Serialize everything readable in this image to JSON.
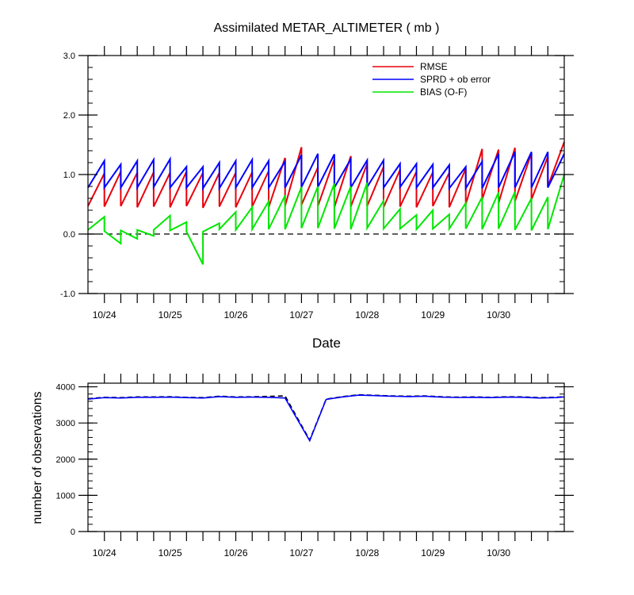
{
  "chart_data": [
    {
      "type": "line",
      "title": "Assimilated METAR_ALTIMETER ( mb )",
      "xlabel": "Date",
      "ylabel": "",
      "ylim": [
        -1.0,
        3.0
      ],
      "yticks": [
        "-1.0",
        "0.0",
        "1.0",
        "2.0",
        "3.0"
      ],
      "xlim": [
        0,
        29
      ],
      "xticks": [
        {
          "label": "10/24",
          "x": 1
        },
        {
          "label": "10/25",
          "x": 5
        },
        {
          "label": "10/26",
          "x": 9
        },
        {
          "label": "10/27",
          "x": 13
        },
        {
          "label": "10/28",
          "x": 17
        },
        {
          "label": "10/29",
          "x": 21
        },
        {
          "label": "10/30",
          "x": 25
        }
      ],
      "zero_line": true,
      "legend_position": "top-right",
      "series": [
        {
          "name": "RMSE",
          "color": "#e8000b",
          "cycles": [
            {
              "start": 0,
              "prior": 0.47,
              "post": 1.02
            },
            {
              "start": 1,
              "prior": 0.46,
              "post": 1.05
            },
            {
              "start": 2,
              "prior": 0.47,
              "post": 1.03
            },
            {
              "start": 3,
              "prior": 0.45,
              "post": 1.04
            },
            {
              "start": 4,
              "prior": 0.46,
              "post": 1.03
            },
            {
              "start": 5,
              "prior": 0.45,
              "post": 1.05
            },
            {
              "start": 6,
              "prior": 0.47,
              "post": 1.03
            },
            {
              "start": 7,
              "prior": 0.44,
              "post": 1.03
            },
            {
              "start": 8,
              "prior": 0.46,
              "post": 1.03
            },
            {
              "start": 9,
              "prior": 0.45,
              "post": 1.04
            },
            {
              "start": 10,
              "prior": 0.46,
              "post": 1.06
            },
            {
              "start": 11,
              "prior": 0.45,
              "post": 1.28
            },
            {
              "start": 12,
              "prior": 0.47,
              "post": 1.46
            },
            {
              "start": 13,
              "prior": 0.49,
              "post": 1.12
            },
            {
              "start": 14,
              "prior": 0.47,
              "post": 1.26
            },
            {
              "start": 15,
              "prior": 0.45,
              "post": 1.31
            },
            {
              "start": 16,
              "prior": 0.46,
              "post": 1.18
            },
            {
              "start": 17,
              "prior": 0.47,
              "post": 1.13
            },
            {
              "start": 18,
              "prior": 0.45,
              "post": 1.08
            },
            {
              "start": 19,
              "prior": 0.46,
              "post": 1.05
            },
            {
              "start": 20,
              "prior": 0.45,
              "post": 1.04
            },
            {
              "start": 21,
              "prior": 0.47,
              "post": 1.03
            },
            {
              "start": 22,
              "prior": 0.45,
              "post": 1.1
            },
            {
              "start": 23,
              "prior": 0.5,
              "post": 1.43
            },
            {
              "start": 24,
              "prior": 0.58,
              "post": 1.42
            },
            {
              "start": 25,
              "prior": 0.52,
              "post": 1.45
            },
            {
              "start": 26,
              "prior": 0.55,
              "post": 1.36
            },
            {
              "start": 27,
              "prior": 0.58,
              "post": 1.3
            },
            {
              "start": 28,
              "prior": 0.8,
              "post": 1.55
            }
          ]
        },
        {
          "name": "SPRD + ob error",
          "color": "#0000ff",
          "cycles": [
            {
              "start": 0,
              "prior": 0.78,
              "post": 1.23
            },
            {
              "start": 1,
              "prior": 0.78,
              "post": 1.17
            },
            {
              "start": 2,
              "prior": 0.78,
              "post": 1.23
            },
            {
              "start": 3,
              "prior": 0.78,
              "post": 1.25
            },
            {
              "start": 4,
              "prior": 0.79,
              "post": 1.26
            },
            {
              "start": 5,
              "prior": 0.78,
              "post": 1.13
            },
            {
              "start": 6,
              "prior": 0.78,
              "post": 1.13
            },
            {
              "start": 7,
              "prior": 0.77,
              "post": 1.2
            },
            {
              "start": 8,
              "prior": 0.77,
              "post": 1.23
            },
            {
              "start": 9,
              "prior": 0.78,
              "post": 1.25
            },
            {
              "start": 10,
              "prior": 0.78,
              "post": 1.23
            },
            {
              "start": 11,
              "prior": 0.78,
              "post": 1.22
            },
            {
              "start": 12,
              "prior": 0.78,
              "post": 1.33
            },
            {
              "start": 13,
              "prior": 0.79,
              "post": 1.35
            },
            {
              "start": 14,
              "prior": 0.79,
              "post": 1.34
            },
            {
              "start": 15,
              "prior": 0.78,
              "post": 1.26
            },
            {
              "start": 16,
              "prior": 0.78,
              "post": 1.24
            },
            {
              "start": 17,
              "prior": 0.79,
              "post": 1.24
            },
            {
              "start": 18,
              "prior": 0.78,
              "post": 1.18
            },
            {
              "start": 19,
              "prior": 0.79,
              "post": 1.18
            },
            {
              "start": 20,
              "prior": 0.78,
              "post": 1.17
            },
            {
              "start": 21,
              "prior": 0.78,
              "post": 1.16
            },
            {
              "start": 22,
              "prior": 0.77,
              "post": 1.13
            },
            {
              "start": 23,
              "prior": 0.77,
              "post": 1.22
            },
            {
              "start": 24,
              "prior": 0.77,
              "post": 1.35
            },
            {
              "start": 25,
              "prior": 0.78,
              "post": 1.38
            },
            {
              "start": 26,
              "prior": 0.78,
              "post": 1.38
            },
            {
              "start": 27,
              "prior": 0.78,
              "post": 1.38
            },
            {
              "start": 28,
              "prior": 0.78,
              "post": 1.35
            }
          ]
        },
        {
          "name": "BIAS (O-F)",
          "color": "#00e600",
          "cycles": [
            {
              "start": 0,
              "prior": 0.07,
              "post": 0.29
            },
            {
              "start": 1,
              "prior": 0.05,
              "post": -0.16
            },
            {
              "start": 2,
              "prior": 0.06,
              "post": -0.08
            },
            {
              "start": 3,
              "prior": 0.07,
              "post": -0.03
            },
            {
              "start": 4,
              "prior": 0.07,
              "post": 0.31
            },
            {
              "start": 5,
              "prior": 0.06,
              "post": 0.2
            },
            {
              "start": 6,
              "prior": 0.04,
              "post": -0.51
            },
            {
              "start": 7,
              "prior": 0.04,
              "post": 0.18
            },
            {
              "start": 8,
              "prior": 0.08,
              "post": 0.37
            },
            {
              "start": 9,
              "prior": 0.07,
              "post": 0.45
            },
            {
              "start": 10,
              "prior": 0.08,
              "post": 0.55
            },
            {
              "start": 11,
              "prior": 0.08,
              "post": 0.65
            },
            {
              "start": 12,
              "prior": 0.08,
              "post": 0.79
            },
            {
              "start": 13,
              "prior": 0.1,
              "post": 0.8
            },
            {
              "start": 14,
              "prior": 0.1,
              "post": 0.85
            },
            {
              "start": 15,
              "prior": 0.09,
              "post": 0.8
            },
            {
              "start": 16,
              "prior": 0.08,
              "post": 0.86
            },
            {
              "start": 17,
              "prior": 0.1,
              "post": 0.56
            },
            {
              "start": 18,
              "prior": 0.09,
              "post": 0.42
            },
            {
              "start": 19,
              "prior": 0.09,
              "post": 0.32
            },
            {
              "start": 20,
              "prior": 0.08,
              "post": 0.4
            },
            {
              "start": 21,
              "prior": 0.09,
              "post": 0.33
            },
            {
              "start": 22,
              "prior": 0.09,
              "post": 0.52
            },
            {
              "start": 23,
              "prior": 0.09,
              "post": 0.62
            },
            {
              "start": 24,
              "prior": 0.08,
              "post": 0.7
            },
            {
              "start": 25,
              "prior": 0.09,
              "post": 0.71
            },
            {
              "start": 26,
              "prior": 0.07,
              "post": 0.6
            },
            {
              "start": 27,
              "prior": 0.06,
              "post": 0.62
            },
            {
              "start": 28,
              "prior": 0.08,
              "post": 1.0
            }
          ]
        }
      ]
    },
    {
      "type": "line",
      "title": "",
      "xlabel": "",
      "ylabel": "number of observations",
      "ylim": [
        0,
        4100
      ],
      "yticks": [
        "0",
        "1000",
        "2000",
        "3000",
        "4000"
      ],
      "xlim": [
        0,
        29
      ],
      "xticks": [
        {
          "label": "10/24",
          "x": 1
        },
        {
          "label": "10/25",
          "x": 5
        },
        {
          "label": "10/26",
          "x": 9
        },
        {
          "label": "10/27",
          "x": 13
        },
        {
          "label": "10/28",
          "x": 17
        },
        {
          "label": "10/29",
          "x": 21
        },
        {
          "label": "10/30",
          "x": 25
        }
      ],
      "series": [
        {
          "color": "#0000ff",
          "style": "solid",
          "x": [
            0,
            1,
            2,
            3,
            4,
            5,
            6,
            7,
            8,
            9,
            10,
            11,
            12,
            13.5,
            14.5,
            15.5,
            16.5,
            17.5,
            18.5,
            19.5,
            20.5,
            21.5,
            22.5,
            23.5,
            24.5,
            25.5,
            26.5,
            27.5,
            28.5,
            29
          ],
          "values": [
            3660,
            3700,
            3690,
            3710,
            3710,
            3715,
            3700,
            3690,
            3730,
            3710,
            3715,
            3710,
            3690,
            2510,
            3650,
            3720,
            3770,
            3755,
            3740,
            3730,
            3740,
            3715,
            3705,
            3710,
            3700,
            3715,
            3710,
            3690,
            3700,
            3720
          ]
        },
        {
          "color": "#000000",
          "style": "dashed",
          "x": [
            0,
            1,
            2,
            3,
            4,
            5,
            6,
            7,
            8,
            9,
            10,
            11,
            12,
            13.5,
            14.5,
            15.5,
            16.5,
            17.5,
            18.5,
            19.5,
            20.5,
            21.5,
            22.5,
            23.5,
            24.5,
            25.5,
            26.5,
            27.5,
            28.5,
            29
          ],
          "values": [
            3670,
            3710,
            3700,
            3720,
            3720,
            3725,
            3710,
            3700,
            3740,
            3720,
            3725,
            3735,
            3750,
            2530,
            3660,
            3730,
            3780,
            3765,
            3750,
            3740,
            3750,
            3725,
            3715,
            3720,
            3710,
            3725,
            3720,
            3700,
            3710,
            3730
          ]
        }
      ]
    }
  ]
}
